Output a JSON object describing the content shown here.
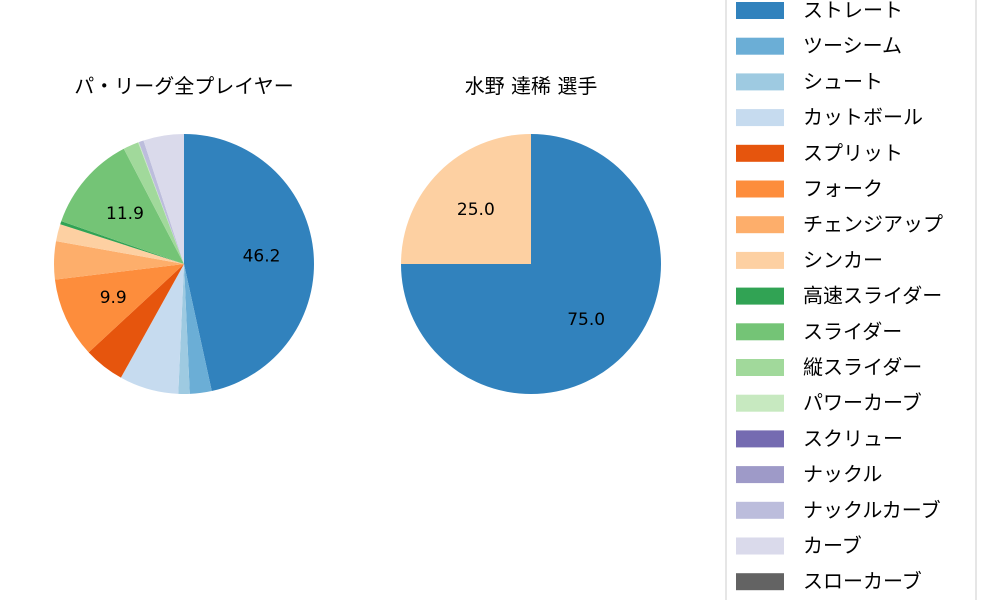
{
  "chart_data": [
    {
      "type": "pie",
      "title": "パ・リーグ全プレイヤー",
      "slices": [
        {
          "label": "ストレート",
          "value": 46.2,
          "color": "#3182bd",
          "show_label": true
        },
        {
          "label": "ツーシーム",
          "value": 2.7,
          "color": "#6baed6",
          "show_label": false
        },
        {
          "label": "シュート",
          "value": 1.4,
          "color": "#9ecae1",
          "show_label": false
        },
        {
          "label": "カットボール",
          "value": 7.3,
          "color": "#c6dbef",
          "show_label": false
        },
        {
          "label": "スプリット",
          "value": 5.0,
          "color": "#e6550d",
          "show_label": false
        },
        {
          "label": "フォーク",
          "value": 9.9,
          "color": "#fd8d3c",
          "show_label": true
        },
        {
          "label": "チェンジアップ",
          "value": 4.7,
          "color": "#fdae6b",
          "show_label": false
        },
        {
          "label": "シンカー",
          "value": 2.1,
          "color": "#fdd0a2",
          "show_label": false
        },
        {
          "label": "高速スライダー",
          "value": 0.4,
          "color": "#31a354",
          "show_label": false
        },
        {
          "label": "スライダー",
          "value": 11.9,
          "color": "#74c476",
          "show_label": true
        },
        {
          "label": "縦スライダー",
          "value": 1.9,
          "color": "#a1d99b",
          "show_label": false
        },
        {
          "label": "パワーカーブ",
          "value": 0.1,
          "color": "#c7e9c0",
          "show_label": false
        },
        {
          "label": "スクリュー",
          "value": 0.0,
          "color": "#756bb1",
          "show_label": false
        },
        {
          "label": "ナックル",
          "value": 0.0,
          "color": "#9e9ac8",
          "show_label": false
        },
        {
          "label": "ナックルカーブ",
          "value": 0.6,
          "color": "#bcbddc",
          "show_label": false
        },
        {
          "label": "カーブ",
          "value": 5.0,
          "color": "#dadaeb",
          "show_label": false
        },
        {
          "label": "スローカーブ",
          "value": 0.0,
          "color": "#636363",
          "show_label": false
        }
      ]
    },
    {
      "type": "pie",
      "title": "水野 達稀  選手",
      "slices": [
        {
          "label": "ストレート",
          "value": 75.0,
          "color": "#3182bd",
          "show_label": true
        },
        {
          "label": "シンカー",
          "value": 25.0,
          "color": "#fdd0a2",
          "show_label": true
        }
      ]
    }
  ],
  "legend": {
    "placement": "right",
    "entries": [
      {
        "label": "ストレート",
        "color": "#3182bd"
      },
      {
        "label": "ツーシーム",
        "color": "#6baed6"
      },
      {
        "label": "シュート",
        "color": "#9ecae1"
      },
      {
        "label": "カットボール",
        "color": "#c6dbef"
      },
      {
        "label": "スプリット",
        "color": "#e6550d"
      },
      {
        "label": "フォーク",
        "color": "#fd8d3c"
      },
      {
        "label": "チェンジアップ",
        "color": "#fdae6b"
      },
      {
        "label": "シンカー",
        "color": "#fdd0a2"
      },
      {
        "label": "高速スライダー",
        "color": "#31a354"
      },
      {
        "label": "スライダー",
        "color": "#74c476"
      },
      {
        "label": "縦スライダー",
        "color": "#a1d99b"
      },
      {
        "label": "パワーカーブ",
        "color": "#c7e9c0"
      },
      {
        "label": "スクリュー",
        "color": "#756bb1"
      },
      {
        "label": "ナックル",
        "color": "#9e9ac8"
      },
      {
        "label": "ナックルカーブ",
        "color": "#bcbddc"
      },
      {
        "label": "カーブ",
        "color": "#dadaeb"
      },
      {
        "label": "スローカーブ",
        "color": "#636363"
      }
    ]
  }
}
